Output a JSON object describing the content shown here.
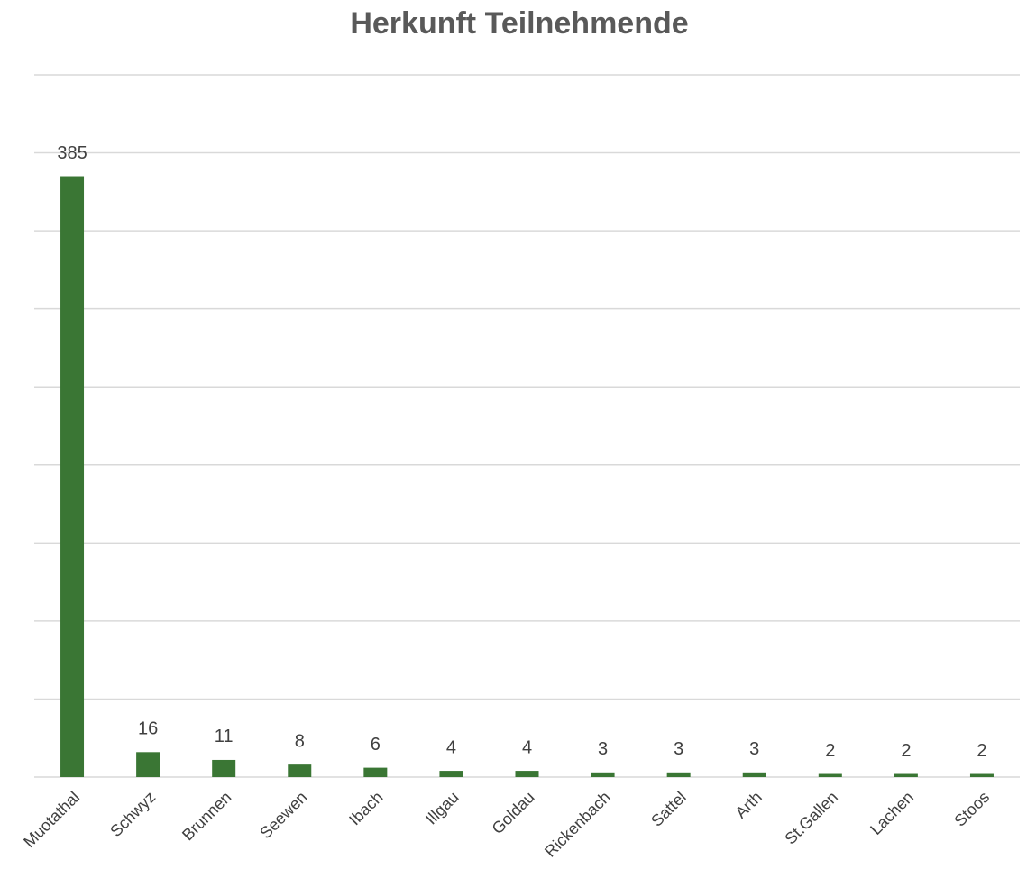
{
  "chart_data": {
    "type": "bar",
    "title": "Herkunft Teilnehmende",
    "categories": [
      "Muotathal",
      "Schwyz",
      "Brunnen",
      "Seewen",
      "Ibach",
      "Illgau",
      "Goldau",
      "Rickenbach",
      "Sattel",
      "Arth",
      "St.Gallen",
      "Lachen",
      "Stoos"
    ],
    "values": [
      385,
      16,
      11,
      8,
      6,
      4,
      4,
      3,
      3,
      3,
      2,
      2,
      2
    ],
    "color": "#3a7634",
    "ylim": [
      0,
      450
    ],
    "yticks": [
      0,
      50,
      100,
      150,
      200,
      250,
      300,
      350,
      400,
      450
    ],
    "grid": true
  }
}
